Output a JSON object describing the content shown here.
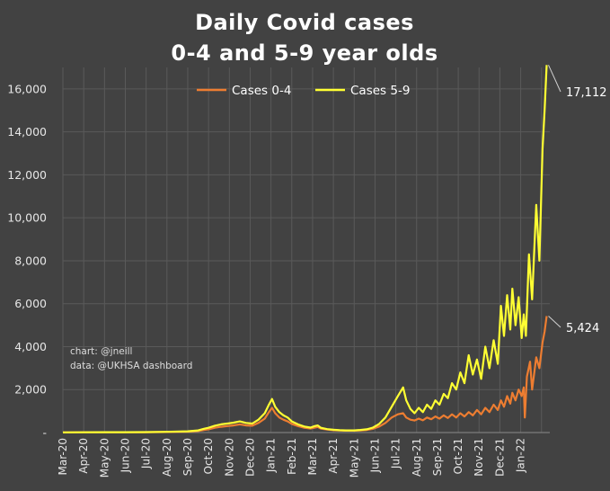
{
  "chart_data": {
    "type": "line",
    "title": [
      "Daily Covid cases",
      "0-4 and 5-9 year olds"
    ],
    "xlabel": "",
    "ylabel": "",
    "ylim": [
      0,
      17000
    ],
    "y_ticks": [
      0,
      2000,
      4000,
      6000,
      8000,
      10000,
      12000,
      14000,
      16000
    ],
    "y_tick_labels": [
      "-",
      "2,000",
      "4,000",
      "6,000",
      "8,000",
      "10,000",
      "12,000",
      "14,000",
      "16,000"
    ],
    "x_tick_labels": [
      "Mar-20",
      "Apr-20",
      "May-20",
      "Jun-20",
      "Jul-20",
      "Aug-20",
      "Sep-20",
      "Oct-20",
      "Nov-20",
      "Dec-20",
      "Jan-21",
      "Feb-21",
      "Mar-21",
      "Apr-21",
      "May-21",
      "Jun-21",
      "Jul-21",
      "Aug-21",
      "Sep-21",
      "Oct-21",
      "Nov-21",
      "Dec-21",
      "Jan-22"
    ],
    "x_month_range": [
      0,
      23.4
    ],
    "grid": true,
    "legend_position": "top-center",
    "series": [
      {
        "name": "Cases 5-9",
        "color": "#ffff33",
        "points": [
          [
            0,
            10
          ],
          [
            1,
            12
          ],
          [
            2,
            15
          ],
          [
            3,
            18
          ],
          [
            4,
            20
          ],
          [
            5,
            35
          ],
          [
            6,
            60
          ],
          [
            6.5,
            100
          ],
          [
            6.8,
            180
          ],
          [
            7,
            220
          ],
          [
            7.3,
            320
          ],
          [
            7.6,
            380
          ],
          [
            7.9,
            420
          ],
          [
            8.2,
            460
          ],
          [
            8.5,
            520
          ],
          [
            8.8,
            450
          ],
          [
            9.1,
            420
          ],
          [
            9.4,
            600
          ],
          [
            9.7,
            900
          ],
          [
            9.9,
            1300
          ],
          [
            10.05,
            1560
          ],
          [
            10.2,
            1200
          ],
          [
            10.4,
            950
          ],
          [
            10.6,
            800
          ],
          [
            10.8,
            700
          ],
          [
            11,
            520
          ],
          [
            11.3,
            380
          ],
          [
            11.6,
            280
          ],
          [
            11.9,
            230
          ],
          [
            12.1,
            300
          ],
          [
            12.25,
            330
          ],
          [
            12.4,
            220
          ],
          [
            12.7,
            160
          ],
          [
            13,
            130
          ],
          [
            13.3,
            110
          ],
          [
            13.6,
            100
          ],
          [
            14,
            100
          ],
          [
            14.3,
            120
          ],
          [
            14.6,
            150
          ],
          [
            14.9,
            230
          ],
          [
            15.2,
            400
          ],
          [
            15.5,
            700
          ],
          [
            15.8,
            1200
          ],
          [
            16.1,
            1700
          ],
          [
            16.35,
            2100
          ],
          [
            16.5,
            1500
          ],
          [
            16.7,
            1100
          ],
          [
            16.9,
            900
          ],
          [
            17.1,
            1150
          ],
          [
            17.3,
            950
          ],
          [
            17.5,
            1300
          ],
          [
            17.7,
            1100
          ],
          [
            17.9,
            1500
          ],
          [
            18.1,
            1300
          ],
          [
            18.3,
            1800
          ],
          [
            18.5,
            1600
          ],
          [
            18.7,
            2300
          ],
          [
            18.9,
            2000
          ],
          [
            19.1,
            2800
          ],
          [
            19.3,
            2300
          ],
          [
            19.5,
            3600
          ],
          [
            19.7,
            2700
          ],
          [
            19.9,
            3400
          ],
          [
            20.1,
            2500
          ],
          [
            20.3,
            4000
          ],
          [
            20.5,
            3000
          ],
          [
            20.7,
            4300
          ],
          [
            20.9,
            3200
          ],
          [
            21.05,
            5900
          ],
          [
            21.2,
            4500
          ],
          [
            21.35,
            6400
          ],
          [
            21.5,
            4800
          ],
          [
            21.6,
            6700
          ],
          [
            21.75,
            5000
          ],
          [
            21.9,
            6300
          ],
          [
            22.05,
            4400
          ],
          [
            22.15,
            5500
          ],
          [
            22.25,
            4500
          ],
          [
            22.4,
            8300
          ],
          [
            22.55,
            6200
          ],
          [
            22.75,
            10600
          ],
          [
            22.9,
            8000
          ],
          [
            23.05,
            13200
          ],
          [
            23.15,
            15000
          ],
          [
            23.25,
            17112
          ]
        ]
      },
      {
        "name": "Cases 0-4",
        "color": "#ed7d31",
        "points": [
          [
            0,
            10
          ],
          [
            1,
            12
          ],
          [
            2,
            14
          ],
          [
            3,
            16
          ],
          [
            4,
            18
          ],
          [
            5,
            25
          ],
          [
            6,
            40
          ],
          [
            6.5,
            70
          ],
          [
            6.8,
            120
          ],
          [
            7,
            150
          ],
          [
            7.3,
            220
          ],
          [
            7.6,
            270
          ],
          [
            7.9,
            300
          ],
          [
            8.2,
            330
          ],
          [
            8.5,
            380
          ],
          [
            8.8,
            330
          ],
          [
            9.1,
            320
          ],
          [
            9.4,
            450
          ],
          [
            9.7,
            650
          ],
          [
            9.9,
            950
          ],
          [
            10.05,
            1150
          ],
          [
            10.2,
            900
          ],
          [
            10.4,
            700
          ],
          [
            10.6,
            600
          ],
          [
            10.8,
            520
          ],
          [
            11,
            400
          ],
          [
            11.3,
            300
          ],
          [
            11.6,
            220
          ],
          [
            11.9,
            190
          ],
          [
            12.1,
            230
          ],
          [
            12.25,
            260
          ],
          [
            12.4,
            180
          ],
          [
            12.7,
            140
          ],
          [
            13,
            110
          ],
          [
            13.3,
            95
          ],
          [
            13.6,
            90
          ],
          [
            14,
            90
          ],
          [
            14.3,
            100
          ],
          [
            14.6,
            120
          ],
          [
            14.9,
            170
          ],
          [
            15.2,
            280
          ],
          [
            15.5,
            450
          ],
          [
            15.8,
            700
          ],
          [
            16.1,
            850
          ],
          [
            16.35,
            900
          ],
          [
            16.5,
            700
          ],
          [
            16.7,
            600
          ],
          [
            16.9,
            560
          ],
          [
            17.1,
            650
          ],
          [
            17.3,
            570
          ],
          [
            17.5,
            700
          ],
          [
            17.7,
            620
          ],
          [
            17.9,
            750
          ],
          [
            18.1,
            650
          ],
          [
            18.3,
            800
          ],
          [
            18.5,
            680
          ],
          [
            18.7,
            850
          ],
          [
            18.9,
            700
          ],
          [
            19.1,
            900
          ],
          [
            19.3,
            750
          ],
          [
            19.5,
            950
          ],
          [
            19.7,
            800
          ],
          [
            19.9,
            1050
          ],
          [
            20.1,
            850
          ],
          [
            20.3,
            1150
          ],
          [
            20.5,
            950
          ],
          [
            20.7,
            1300
          ],
          [
            20.9,
            1050
          ],
          [
            21.05,
            1500
          ],
          [
            21.2,
            1200
          ],
          [
            21.35,
            1700
          ],
          [
            21.5,
            1350
          ],
          [
            21.6,
            1850
          ],
          [
            21.75,
            1500
          ],
          [
            21.9,
            2000
          ],
          [
            22.05,
            1700
          ],
          [
            22.15,
            2100
          ],
          [
            22.2,
            700
          ],
          [
            22.3,
            2600
          ],
          [
            22.45,
            3300
          ],
          [
            22.55,
            2000
          ],
          [
            22.75,
            3500
          ],
          [
            22.9,
            3000
          ],
          [
            23.05,
            4200
          ],
          [
            23.15,
            4700
          ],
          [
            23.25,
            5424
          ]
        ]
      }
    ],
    "annotations": [
      {
        "series": "Cases 5-9",
        "label": "17,112",
        "value": 17112,
        "x_month": 23.25
      },
      {
        "series": "Cases 0-4",
        "label": "5,424",
        "value": 5424,
        "x_month": 23.25
      }
    ]
  },
  "credits": [
    "chart: @jneill",
    "data: @UKHSA dashboard"
  ]
}
